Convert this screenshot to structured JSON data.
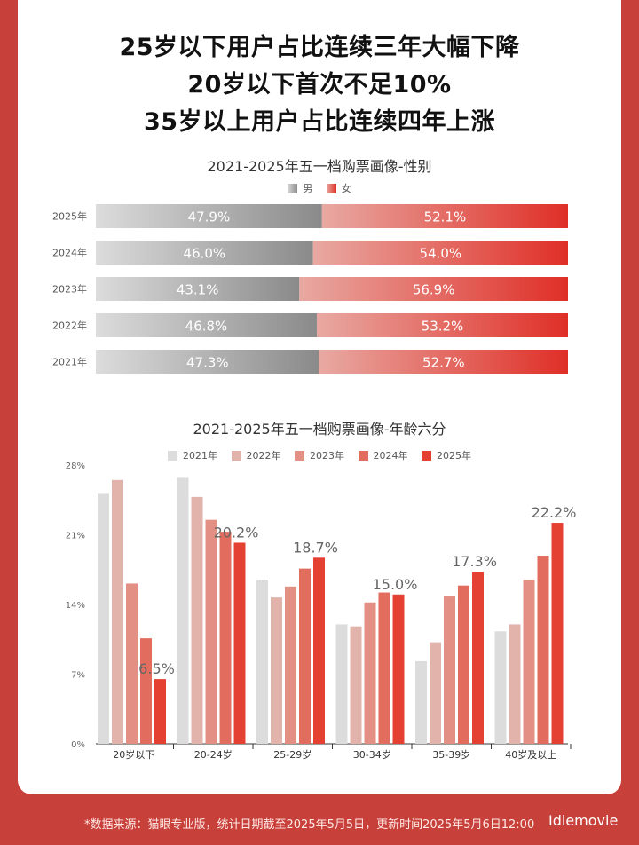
{
  "headlines": [
    "25岁以下用户占比连续三年大幅下降",
    "20岁以下首次不足10%",
    "35岁以上用户占比连续四年上涨"
  ],
  "footer": "*数据来源：猫眼专业版，统计日期截至2025年5月5日，更新时间2025年5月6日12:00",
  "watermark": "Idlemovie",
  "colors": {
    "male_dark": "#8a8a8a",
    "male_light": "#dcdcdc",
    "female_light": "#e8a9a2",
    "female_dark": "#df2f27",
    "y2021": "#dcdcdc",
    "y2022": "#e2b3ab",
    "y2023": "#e38f84",
    "y2024": "#e26c5e",
    "y2025": "#e54132"
  },
  "chart_data": [
    {
      "type": "bar",
      "orientation": "horizontal-stacked",
      "title": "2021-2025年五一档购票画像-性别",
      "categories": [
        "2025年",
        "2024年",
        "2023年",
        "2022年",
        "2021年"
      ],
      "series": [
        {
          "name": "男",
          "values": [
            47.9,
            46.0,
            43.1,
            46.8,
            47.3
          ],
          "labels": [
            "47.9%",
            "46.0%",
            "43.1%",
            "46.8%",
            "47.3%"
          ]
        },
        {
          "name": "女",
          "values": [
            52.1,
            54.0,
            56.9,
            53.2,
            52.7
          ],
          "labels": [
            "52.1%",
            "54.0%",
            "56.9%",
            "53.2%",
            "52.7%"
          ]
        }
      ],
      "xlim": [
        0,
        100
      ]
    },
    {
      "type": "bar",
      "title": "2021-2025年五一档购票画像-年龄六分",
      "categories": [
        "20岁以下",
        "20-24岁",
        "25-29岁",
        "30-34岁",
        "35-39岁",
        "40岁及以上"
      ],
      "series": [
        {
          "name": "2021年",
          "values": [
            25.2,
            26.8,
            16.5,
            12.0,
            8.3,
            11.3
          ]
        },
        {
          "name": "2022年",
          "values": [
            26.5,
            24.8,
            14.7,
            11.8,
            10.2,
            12.0
          ]
        },
        {
          "name": "2023年",
          "values": [
            16.1,
            22.5,
            15.8,
            14.2,
            14.8,
            16.5
          ]
        },
        {
          "name": "2024年",
          "values": [
            10.6,
            21.3,
            17.6,
            15.2,
            15.9,
            18.9
          ]
        },
        {
          "name": "2025年",
          "values": [
            6.5,
            20.2,
            18.7,
            15.0,
            17.3,
            22.2
          ]
        }
      ],
      "value_labels_2025": [
        "6.5%",
        "20.2%",
        "18.7%",
        "15.0%",
        "17.3%",
        "22.2%"
      ],
      "yticks": [
        "0%",
        "7%",
        "14%",
        "21%",
        "28%"
      ],
      "ylim": [
        0,
        28
      ],
      "legend": "top-center",
      "grid": false
    }
  ]
}
